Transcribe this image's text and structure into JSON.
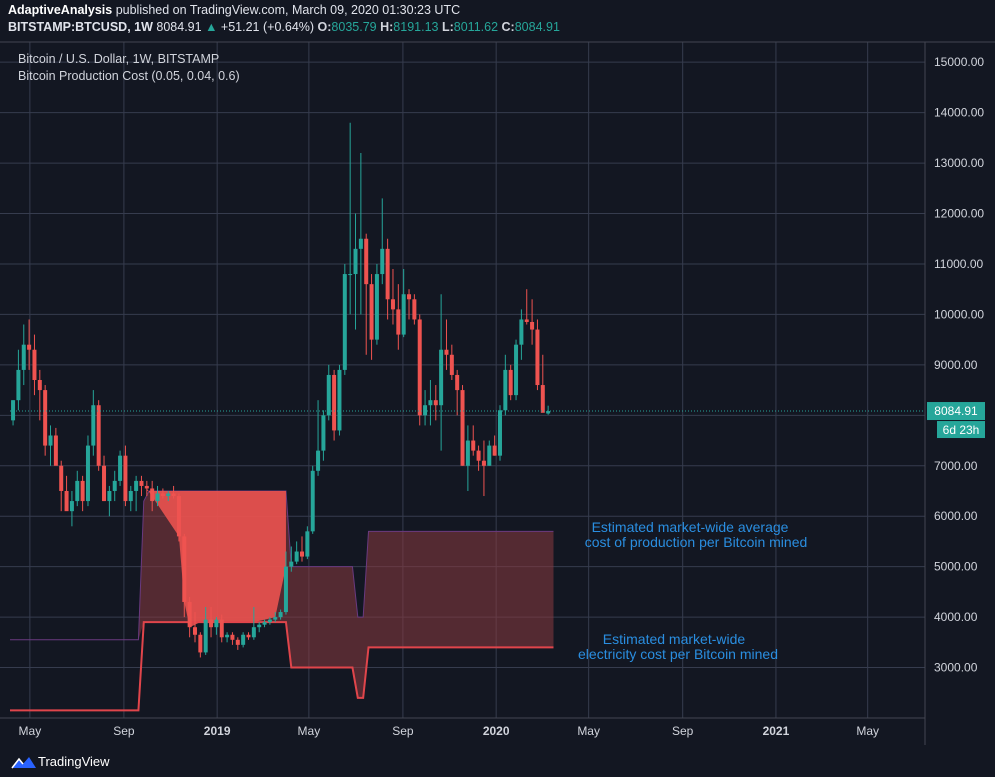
{
  "header": {
    "author": "AdaptiveAnalysis",
    "published": " published on TradingView.com, March 09, 2020 01:30:23 UTC",
    "symbol": "BITSTAMP:BTCUSD, 1W",
    "last": "8084.91",
    "change_arrow": "▲",
    "change": "+51.21 (+0.64%)",
    "o_label": "O:",
    "o": "8035.79",
    "h_label": "H:",
    "h": "8191.13",
    "l_label": "L:",
    "l": "8011.62",
    "c_label": "C:",
    "c": "8084.91"
  },
  "legend": {
    "title": "Bitcoin / U.S. Dollar, 1W, BITSTAMP",
    "indicator": "Bitcoin Production Cost (0.05, 0.04, 0.6)"
  },
  "price_label": "8084.91",
  "countdown_label": "6d 23h",
  "annotations": {
    "production_1": "Estimated market-wide average",
    "production_2": "cost of production per Bitcoin mined",
    "electricity_1": "Estimated market-wide",
    "electricity_2": "electricity cost per Bitcoin mined"
  },
  "footer": {
    "brand": "TradingView",
    "logo_icon": "tradingview-logo-icon"
  },
  "colors": {
    "background": "#131722",
    "grid": "#363c4e",
    "up": "#26a69a",
    "down": "#ef5350",
    "cost_fill": "#ef5350",
    "annotation": "#2a8ee0"
  },
  "chart_data": {
    "type": "candlestick",
    "title": "Bitcoin / U.S. Dollar, 1W, BITSTAMP",
    "ylim": [
      2000,
      15400
    ],
    "y_ticks": [
      3000,
      4000,
      5000,
      6000,
      7000,
      8000,
      9000,
      10000,
      11000,
      12000,
      13000,
      14000,
      15000
    ],
    "y_tick_labels": [
      "3000.00",
      "4000.00",
      "5000.00",
      "6000.00",
      "7000.00",
      "8000.00",
      "9000.00",
      "10000.00",
      "11000.00",
      "12000.00",
      "13000.00",
      "14000.00",
      "15000.00"
    ],
    "x_ticks": [
      "2018-05-01",
      "2018-09-01",
      "2019-01-01",
      "2019-05-01",
      "2019-09-01",
      "2020-01-01",
      "2020-05-01",
      "2020-09-01",
      "2021-01-01",
      "2021-05-01"
    ],
    "x_tick_labels": [
      "May",
      "Sep",
      "2019",
      "May",
      "Sep",
      "2020",
      "May",
      "Sep",
      "2021",
      "May"
    ],
    "x_range": [
      "2018-04-05",
      "2021-07-15"
    ],
    "grid": true,
    "last_price": 8084.91,
    "series": [
      {
        "name": "BITSTAMP:BTCUSD",
        "type": "candlestick",
        "columns": [
          "date",
          "open",
          "high",
          "low",
          "close"
        ],
        "values": [
          [
            "2018-04-09",
            7900,
            8300,
            7800,
            8300
          ],
          [
            "2018-04-16",
            8300,
            9300,
            8100,
            8900
          ],
          [
            "2018-04-23",
            8900,
            9800,
            8600,
            9400
          ],
          [
            "2018-04-30",
            9400,
            9900,
            8900,
            9300
          ],
          [
            "2018-05-07",
            9300,
            9600,
            8400,
            8700
          ],
          [
            "2018-05-14",
            8700,
            8900,
            7900,
            8500
          ],
          [
            "2018-05-21",
            8500,
            8600,
            7200,
            7400
          ],
          [
            "2018-05-28",
            7400,
            7800,
            7000,
            7600
          ],
          [
            "2018-06-04",
            7600,
            7750,
            7200,
            7000
          ],
          [
            "2018-06-11",
            7000,
            7100,
            6100,
            6500
          ],
          [
            "2018-06-18",
            6500,
            6800,
            6200,
            6100
          ],
          [
            "2018-06-25",
            6100,
            6500,
            5800,
            6300
          ],
          [
            "2018-07-02",
            6300,
            6900,
            6200,
            6700
          ],
          [
            "2018-07-09",
            6700,
            6800,
            6100,
            6300
          ],
          [
            "2018-07-16",
            6300,
            7600,
            6200,
            7400
          ],
          [
            "2018-07-23",
            7400,
            8500,
            7200,
            8200
          ],
          [
            "2018-07-30",
            8200,
            8300,
            6900,
            7000
          ],
          [
            "2018-08-06",
            7000,
            7200,
            6300,
            6300
          ],
          [
            "2018-08-13",
            6300,
            6600,
            6000,
            6500
          ],
          [
            "2018-08-20",
            6500,
            6900,
            6300,
            6700
          ],
          [
            "2018-08-27",
            6700,
            7300,
            6600,
            7200
          ],
          [
            "2018-09-03",
            7200,
            7400,
            6200,
            6300
          ],
          [
            "2018-09-10",
            6300,
            6600,
            6100,
            6500
          ],
          [
            "2018-09-17",
            6500,
            6800,
            6100,
            6700
          ],
          [
            "2018-09-24",
            6700,
            6800,
            6400,
            6600
          ],
          [
            "2018-10-01",
            6600,
            6700,
            6400,
            6550
          ],
          [
            "2018-10-08",
            6550,
            6700,
            6100,
            6300
          ],
          [
            "2018-10-15",
            6300,
            6600,
            6200,
            6450
          ],
          [
            "2018-10-22",
            6450,
            6550,
            6350,
            6400
          ],
          [
            "2018-10-29",
            6400,
            6500,
            6300,
            6450
          ],
          [
            "2018-11-05",
            6450,
            6600,
            6350,
            6400
          ],
          [
            "2018-11-12",
            6400,
            6450,
            5500,
            5600
          ],
          [
            "2018-11-19",
            5600,
            5650,
            4000,
            4300
          ],
          [
            "2018-11-26",
            4300,
            4400,
            3600,
            3800
          ],
          [
            "2018-12-03",
            3800,
            4100,
            3500,
            3650
          ],
          [
            "2018-12-10",
            3650,
            3700,
            3200,
            3300
          ],
          [
            "2018-12-17",
            3300,
            4200,
            3250,
            3950
          ],
          [
            "2018-12-24",
            3950,
            4200,
            3600,
            3800
          ],
          [
            "2018-12-31",
            3800,
            4000,
            3650,
            3950
          ],
          [
            "2019-01-07",
            3950,
            4050,
            3500,
            3600
          ],
          [
            "2019-01-14",
            3600,
            3700,
            3500,
            3650
          ],
          [
            "2019-01-21",
            3650,
            3700,
            3450,
            3550
          ],
          [
            "2019-01-28",
            3550,
            3600,
            3350,
            3450
          ],
          [
            "2019-02-04",
            3450,
            3700,
            3400,
            3650
          ],
          [
            "2019-02-11",
            3650,
            3700,
            3550,
            3600
          ],
          [
            "2019-02-18",
            3600,
            4200,
            3550,
            3800
          ],
          [
            "2019-02-25",
            3800,
            3900,
            3700,
            3850
          ],
          [
            "2019-03-04",
            3850,
            3950,
            3800,
            3900
          ],
          [
            "2019-03-11",
            3900,
            4000,
            3850,
            3950
          ],
          [
            "2019-03-18",
            3950,
            4100,
            3900,
            4000
          ],
          [
            "2019-03-25",
            4000,
            4150,
            3950,
            4100
          ],
          [
            "2019-04-01",
            4100,
            5300,
            4050,
            5000
          ],
          [
            "2019-04-08",
            5000,
            5400,
            4900,
            5100
          ],
          [
            "2019-04-15",
            5100,
            5500,
            5050,
            5300
          ],
          [
            "2019-04-22",
            5300,
            5600,
            5100,
            5200
          ],
          [
            "2019-04-29",
            5200,
            5800,
            5150,
            5700
          ],
          [
            "2019-05-06",
            5700,
            7000,
            5650,
            6900
          ],
          [
            "2019-05-13",
            6900,
            8300,
            6800,
            7300
          ],
          [
            "2019-05-20",
            7300,
            8100,
            7100,
            8000
          ],
          [
            "2019-05-27",
            8000,
            9000,
            7900,
            8800
          ],
          [
            "2019-06-03",
            8800,
            8900,
            7500,
            7700
          ],
          [
            "2019-06-10",
            7700,
            9000,
            7600,
            8900
          ],
          [
            "2019-06-17",
            8900,
            11000,
            8800,
            10800
          ],
          [
            "2019-06-24",
            10800,
            13800,
            10000,
            10800
          ],
          [
            "2019-07-01",
            10800,
            12000,
            9700,
            11300
          ],
          [
            "2019-07-08",
            11300,
            13200,
            10000,
            11500
          ],
          [
            "2019-07-15",
            11500,
            11600,
            9200,
            10600
          ],
          [
            "2019-07-22",
            10600,
            10800,
            9100,
            9500
          ],
          [
            "2019-07-29",
            9500,
            11000,
            9400,
            10800
          ],
          [
            "2019-08-05",
            10800,
            12300,
            10600,
            11300
          ],
          [
            "2019-08-12",
            11300,
            11500,
            9900,
            10300
          ],
          [
            "2019-08-19",
            10300,
            10900,
            9800,
            10100
          ],
          [
            "2019-08-26",
            10100,
            10600,
            9300,
            9600
          ],
          [
            "2019-09-02",
            9600,
            10900,
            9550,
            10400
          ],
          [
            "2019-09-09",
            10400,
            10500,
            9900,
            10300
          ],
          [
            "2019-09-16",
            10300,
            10400,
            9800,
            9900
          ],
          [
            "2019-09-23",
            9900,
            10000,
            7800,
            8000
          ],
          [
            "2019-09-30",
            8000,
            8500,
            7800,
            8200
          ],
          [
            "2019-10-07",
            8200,
            8700,
            7800,
            8300
          ],
          [
            "2019-10-14",
            8300,
            8600,
            7900,
            8200
          ],
          [
            "2019-10-21",
            8200,
            10400,
            7300,
            9300
          ],
          [
            "2019-10-28",
            9300,
            9900,
            8900,
            9200
          ],
          [
            "2019-11-04",
            9200,
            9400,
            8700,
            8800
          ],
          [
            "2019-11-11",
            8800,
            8900,
            8000,
            8500
          ],
          [
            "2019-11-18",
            8500,
            8600,
            7000,
            7000
          ],
          [
            "2019-11-25",
            7000,
            7800,
            6500,
            7500
          ],
          [
            "2019-12-02",
            7500,
            7800,
            7200,
            7300
          ],
          [
            "2019-12-09",
            7300,
            7400,
            6900,
            7100
          ],
          [
            "2019-12-16",
            7100,
            7500,
            6400,
            7000
          ],
          [
            "2019-12-23",
            7000,
            7500,
            7000,
            7400
          ],
          [
            "2019-12-30",
            7400,
            7600,
            7200,
            7200
          ],
          [
            "2020-01-06",
            7200,
            8200,
            7100,
            8100
          ],
          [
            "2020-01-13",
            8100,
            9200,
            8000,
            8900
          ],
          [
            "2020-01-20",
            8900,
            9000,
            8300,
            8400
          ],
          [
            "2020-01-27",
            8400,
            9500,
            8300,
            9400
          ],
          [
            "2020-02-03",
            9400,
            10100,
            9100,
            9900
          ],
          [
            "2020-02-10",
            9900,
            10500,
            9800,
            9850
          ],
          [
            "2020-02-17",
            9850,
            10300,
            9400,
            9700
          ],
          [
            "2020-02-24",
            9700,
            9900,
            8500,
            8600
          ],
          [
            "2020-03-02",
            8600,
            9200,
            8500,
            8050
          ],
          [
            "2020-03-09",
            8036,
            8191,
            8012,
            8085
          ]
        ]
      },
      {
        "name": "Production cost band",
        "type": "band",
        "columns": [
          "date",
          "lower",
          "upper"
        ],
        "values": [
          [
            "2018-04-05",
            3550,
            3550
          ],
          [
            "2018-09-20",
            3550,
            3550
          ],
          [
            "2018-09-27",
            3900,
            6300
          ],
          [
            "2018-10-04",
            3900,
            6500
          ],
          [
            "2018-11-01",
            3900,
            6500
          ],
          [
            "2019-04-01",
            3900,
            6500
          ],
          [
            "2019-04-08",
            3000,
            5000
          ],
          [
            "2019-06-27",
            3000,
            5000
          ],
          [
            "2019-07-04",
            2400,
            4000
          ],
          [
            "2019-07-11",
            2400,
            4000
          ],
          [
            "2019-07-18",
            3400,
            5700
          ],
          [
            "2020-03-16",
            3400,
            5700
          ]
        ]
      },
      {
        "name": "Electricity cost line",
        "type": "line",
        "columns": [
          "date",
          "value"
        ],
        "values": [
          [
            "2018-04-05",
            2150
          ],
          [
            "2018-09-20",
            2150
          ],
          [
            "2018-09-27",
            3900
          ],
          [
            "2019-04-01",
            3900
          ],
          [
            "2019-04-08",
            3000
          ],
          [
            "2019-06-27",
            3000
          ],
          [
            "2019-07-04",
            2400
          ],
          [
            "2019-07-11",
            2400
          ],
          [
            "2019-07-18",
            3400
          ],
          [
            "2020-03-16",
            3400
          ]
        ]
      },
      {
        "name": "Price above cost fill",
        "type": "area",
        "columns": [
          "date",
          "top",
          "bottom"
        ],
        "values": [
          [
            "2018-10-01",
            6500,
            6550
          ],
          [
            "2018-11-12",
            6500,
            5600
          ],
          [
            "2018-11-19",
            6500,
            4300
          ],
          [
            "2018-11-26",
            6500,
            3800
          ],
          [
            "2018-12-10",
            6500,
            3900
          ],
          [
            "2019-01-07",
            6500,
            3900
          ],
          [
            "2019-02-18",
            6500,
            3900
          ],
          [
            "2019-03-18",
            6500,
            4000
          ],
          [
            "2019-04-01",
            6500,
            5000
          ]
        ]
      }
    ]
  }
}
